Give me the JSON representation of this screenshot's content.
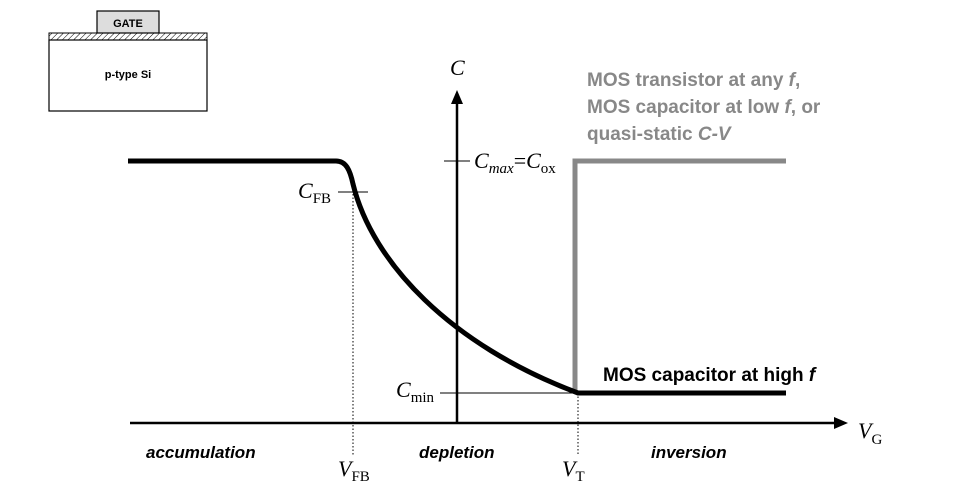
{
  "inset": {
    "gate_label": "GATE",
    "substrate_label": "p-type Si"
  },
  "axes": {
    "y_symbol": "C",
    "x_symbol": "V",
    "x_subscript": "G"
  },
  "markers": {
    "cmax_main": "C",
    "cmax_sub": "max",
    "cmax_eq": "=",
    "cox_main": "C",
    "cox_sub": "ox",
    "cfb_main": "C",
    "cfb_sub": "FB",
    "cmin_main": "C",
    "cmin_sub": "min",
    "vfb_main": "V",
    "vfb_sub": "FB",
    "vt_main": "V",
    "vt_sub": "T"
  },
  "regions": {
    "accumulation": "accumulation",
    "depletion": "depletion",
    "inversion": "inversion"
  },
  "legend": {
    "low_f_line1_pre": "MOS transistor at any ",
    "low_f_line1_f": "f",
    "low_f_line1_post": ",",
    "low_f_line2_pre": "MOS capacitor at low ",
    "low_f_line2_f": "f",
    "low_f_line2_post": ", or",
    "low_f_line3_pre": "quasi-static ",
    "low_f_line3_cv": "C-V",
    "high_f_pre": "MOS capacitor at high ",
    "high_f_f": "f"
  },
  "colors": {
    "high_f_curve": "#000000",
    "low_f_curve": "#888888"
  }
}
